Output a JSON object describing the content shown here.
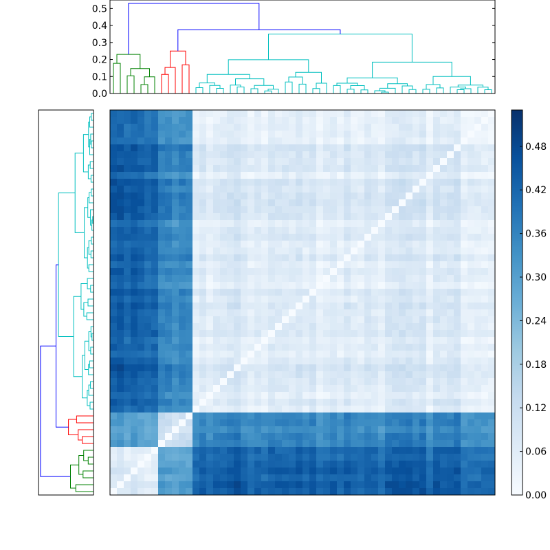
{
  "chart_data": [
    {
      "type": "dendrogram",
      "orientation": "top",
      "ylim": [
        0,
        0.55
      ],
      "yticks": [
        "0.0",
        "0.1",
        "0.2",
        "0.3",
        "0.4",
        "0.5"
      ],
      "ytick_values": [
        0.0,
        0.1,
        0.2,
        0.3,
        0.4,
        0.5
      ],
      "leaf_count": 56,
      "cluster_colors": {
        "cluster_a": "#008000",
        "cluster_b": "#ff0000",
        "cluster_c": "#00bfbf",
        "above_threshold": "#0000ff"
      },
      "clusters": [
        {
          "color": "cluster_a",
          "leaves": 7,
          "merge_height": 0.23
        },
        {
          "color": "cluster_b",
          "leaves": 5,
          "merge_height": 0.25
        },
        {
          "color": "cluster_c",
          "leaves": 44,
          "merge_height": 0.35
        }
      ],
      "root_merges": [
        {
          "join": [
            "cluster_b",
            "cluster_c"
          ],
          "height": 0.375
        },
        {
          "join": [
            "cluster_a",
            "rest"
          ],
          "height": 0.53
        }
      ]
    },
    {
      "type": "dendrogram",
      "orientation": "left",
      "leaf_count": 56,
      "mirror_of": "top dendrogram"
    },
    {
      "type": "heatmap",
      "matrix_size": 56,
      "colormap": "Blues",
      "vmin": 0.0,
      "vmax": 0.53,
      "block_structure": {
        "cluster_a_rows": 7,
        "cluster_b_rows": 5,
        "cluster_c_rows": 44,
        "within_cluster_typical": 0.07,
        "cluster_c_to_a_typical": 0.43,
        "cluster_c_to_b_typical": 0.33,
        "cluster_b_to_a_typical": 0.27,
        "diagonal": 0.0
      },
      "colorbar": {
        "ticks": [
          "0.00",
          "0.06",
          "0.12",
          "0.18",
          "0.24",
          "0.30",
          "0.36",
          "0.42",
          "0.48"
        ],
        "tick_values": [
          0.0,
          0.06,
          0.12,
          0.18,
          0.24,
          0.3,
          0.36,
          0.42,
          0.48
        ]
      }
    }
  ]
}
